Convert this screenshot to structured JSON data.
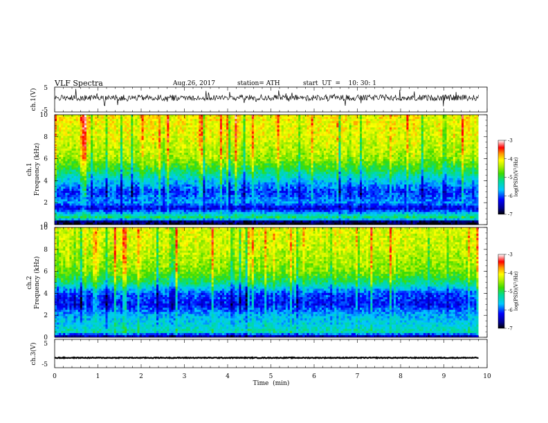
{
  "header": {
    "title": "VLF  Spectra",
    "date": "Aug.26, 2017",
    "station": "station= ATH",
    "start": "start  UT  =    10: 30: 1"
  },
  "chart_data": [
    {
      "type": "line",
      "name": "ch.1 waveform",
      "ylabel": "ch.1(V)",
      "ylim": [
        -5,
        5
      ],
      "yticks": [
        "5",
        "-5"
      ],
      "xlim": [
        0,
        10
      ],
      "x_end": 9.8,
      "baseline": 0.7,
      "noise_amplitude": 1.2
    },
    {
      "type": "heatmap",
      "name": "ch.1 spectrogram",
      "ylabel": "Frequency  (kHz)",
      "channel_label": "ch.1",
      "ylim": [
        0,
        10
      ],
      "yticks": [
        "0",
        "2",
        "4",
        "6",
        "8",
        "10"
      ],
      "xlim": [
        0,
        10
      ],
      "x_end": 9.8,
      "colorbar": {
        "label": "log(PSD)(V²/Hz)",
        "range": [
          -7,
          -3
        ],
        "ticks": [
          "-3",
          "-4",
          "-5",
          "-6",
          "-7"
        ]
      },
      "profile": [
        {
          "f": 0.25,
          "psd": -6.9
        },
        {
          "f": 0.6,
          "psd": -5.0
        },
        {
          "f": 1.0,
          "psd": -5.6
        },
        {
          "f": 1.5,
          "psd": -6.4
        },
        {
          "f": 2.0,
          "psd": -5.8
        },
        {
          "f": 3.0,
          "psd": -6.1
        },
        {
          "f": 4.0,
          "psd": -5.6
        },
        {
          "f": 5.0,
          "psd": -5.0
        },
        {
          "f": 6.0,
          "psd": -4.5
        },
        {
          "f": 8.0,
          "psd": -4.2
        },
        {
          "f": 10.0,
          "psd": -4.1
        }
      ]
    },
    {
      "type": "heatmap",
      "name": "ch.2 spectrogram",
      "ylabel": "Frequency  (kHz)",
      "channel_label": "ch.2",
      "ylim": [
        0,
        10
      ],
      "yticks": [
        "0",
        "2",
        "4",
        "6",
        "8",
        "10"
      ],
      "xlim": [
        0,
        10
      ],
      "x_end": 9.8,
      "colorbar": {
        "label": "log(PSD)(V²/Hz)",
        "range": [
          -7,
          -3
        ],
        "ticks": [
          "-3",
          "-4",
          "-5",
          "-6",
          "-7"
        ]
      },
      "profile": [
        {
          "f": 0.1,
          "psd": -6.5
        },
        {
          "f": 0.5,
          "psd": -5.3
        },
        {
          "f": 1.0,
          "psd": -5.5
        },
        {
          "f": 2.0,
          "psd": -5.7
        },
        {
          "f": 3.0,
          "psd": -6.2
        },
        {
          "f": 4.0,
          "psd": -6.0
        },
        {
          "f": 5.0,
          "psd": -5.1
        },
        {
          "f": 6.0,
          "psd": -4.6
        },
        {
          "f": 8.0,
          "psd": -4.3
        },
        {
          "f": 10.0,
          "psd": -4.2
        }
      ]
    },
    {
      "type": "line",
      "name": "ch.3 waveform",
      "ylabel": "ch.3(V)",
      "ylim": [
        -5,
        5
      ],
      "yticks": [
        "5",
        "-5"
      ],
      "xlim": [
        0,
        10
      ],
      "x_end": 9.8,
      "baseline": -1.5,
      "noise_amplitude": 0.15
    }
  ],
  "xaxis": {
    "label": "Time  (min)",
    "ticks": [
      "0",
      "1",
      "2",
      "3",
      "4",
      "5",
      "6",
      "7",
      "8",
      "9",
      "10"
    ]
  }
}
